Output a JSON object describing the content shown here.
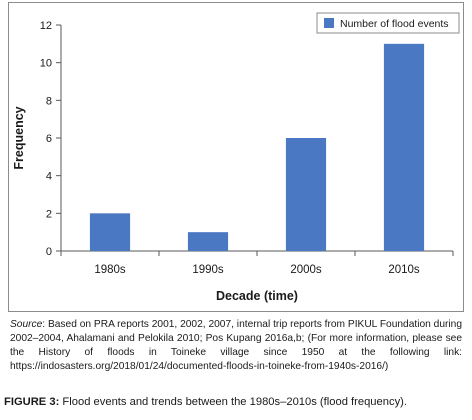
{
  "chart_data": {
    "type": "bar",
    "categories": [
      "1980s",
      "1990s",
      "2000s",
      "2010s"
    ],
    "series": [
      {
        "name": "Number of flood events",
        "values": [
          2,
          1,
          6,
          11
        ],
        "color": "#4a78c2"
      }
    ],
    "xlabel": "Decade (time)",
    "ylabel": "Frequency",
    "ylim": [
      0,
      12
    ],
    "yticks": [
      0,
      2,
      4,
      6,
      8,
      10,
      12
    ],
    "grid": false,
    "legend": "top-right"
  },
  "source": {
    "label": "Source",
    "text": ": Based on PRA reports 2001, 2002, 2007, internal trip reports from PIKUL Foundation during 2002–2004, Ahalamani and Pelokila 2010; Pos Kupang 2016a,b; (For more information, please see the History of floods in Toineke village since 1950 at the following link: https://indosasters.org/2018/01/24/documented-floods-in-toineke-from-1940s-2016/)"
  },
  "caption": {
    "lead": "FIGURE 3:",
    "text": " Flood events and trends between the 1980s–2010s (flood frequency)."
  }
}
